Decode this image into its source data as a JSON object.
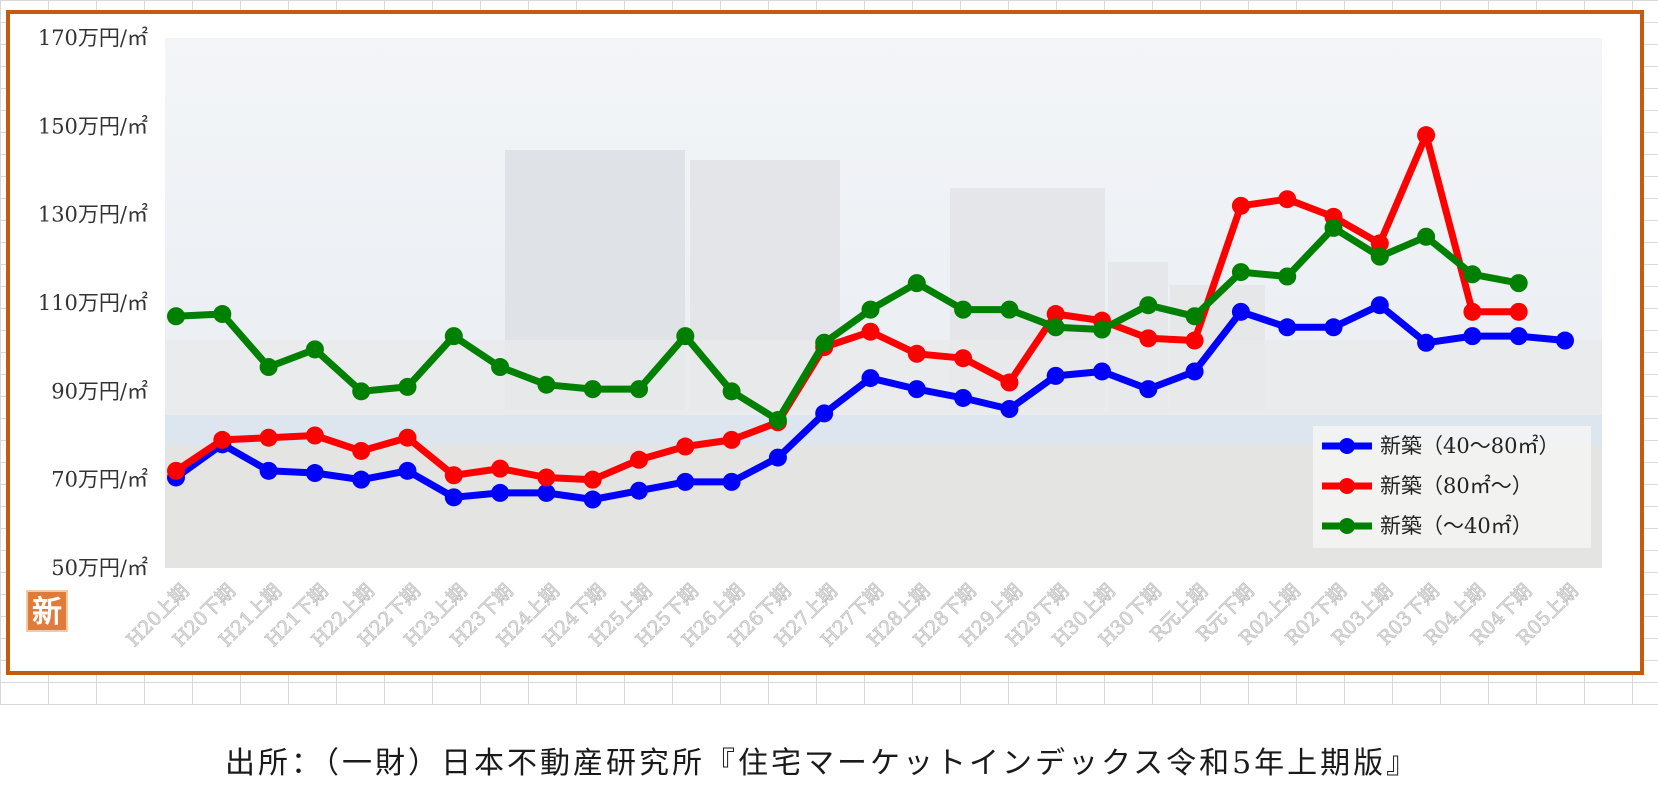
{
  "chart_data": {
    "type": "line",
    "title": "",
    "xlabel": "",
    "ylabel": "",
    "ylim": [
      50,
      170
    ],
    "yticks": [
      "50万円/㎡",
      "70万円/㎡",
      "90万円/㎡",
      "110万円/㎡",
      "130万円/㎡",
      "150万円/㎡",
      "170万円/㎡"
    ],
    "ytick_values": [
      50,
      70,
      90,
      110,
      130,
      150,
      170
    ],
    "grid": false,
    "legend_position": "bottom-right",
    "categories": [
      "H20上期",
      "H20下期",
      "H21上期",
      "H21下期",
      "H22上期",
      "H22下期",
      "H23上期",
      "H23下期",
      "H24上期",
      "H24下期",
      "H25上期",
      "H25下期",
      "H26上期",
      "H26下期",
      "H27上期",
      "H27下期",
      "H28上期",
      "H28下期",
      "H29上期",
      "H29下期",
      "H30上期",
      "H30下期",
      "R元上期",
      "R元下期",
      "R02上期",
      "R02下期",
      "R03上期",
      "R03下期",
      "R04上期",
      "R04下期",
      "R05上期"
    ],
    "series": [
      {
        "name": "新築（40〜80㎡）",
        "color": "#0000ff",
        "values": [
          70.5,
          78,
          72,
          71.5,
          70,
          72,
          66,
          67,
          67,
          65.5,
          67.5,
          69.5,
          69.5,
          75,
          85,
          93,
          90.5,
          88.5,
          86,
          93.5,
          94.5,
          90.5,
          94.5,
          108,
          104.5,
          104.5,
          109.5,
          101,
          102.5,
          102.5,
          101.5
        ]
      },
      {
        "name": "新築（80㎡〜）",
        "color": "#ff0000",
        "values": [
          72,
          79,
          79.5,
          80,
          76.5,
          79.5,
          71,
          72.5,
          70.5,
          70,
          74.5,
          77.5,
          79,
          83,
          100,
          103.5,
          98.5,
          97.5,
          92,
          107.5,
          106,
          102,
          101.5,
          132,
          133.5,
          129.5,
          123.5,
          148,
          108,
          108,
          null
        ]
      },
      {
        "name": "新築（〜40㎡）",
        "color": "#008000",
        "values": [
          107,
          107.5,
          95.5,
          99.5,
          90,
          91,
          102.5,
          95.5,
          91.5,
          90.5,
          90.5,
          102.5,
          90,
          83.5,
          101,
          108.5,
          114.5,
          108.5,
          108.5,
          104.5,
          104,
          109.5,
          107,
          117,
          116,
          127,
          120.5,
          125,
          116.5,
          114.5,
          null
        ]
      }
    ]
  },
  "badge": "新",
  "source_note": "出所：（一財）日本不動産研究所『住宅マーケットインデックス令和5年上期版』"
}
